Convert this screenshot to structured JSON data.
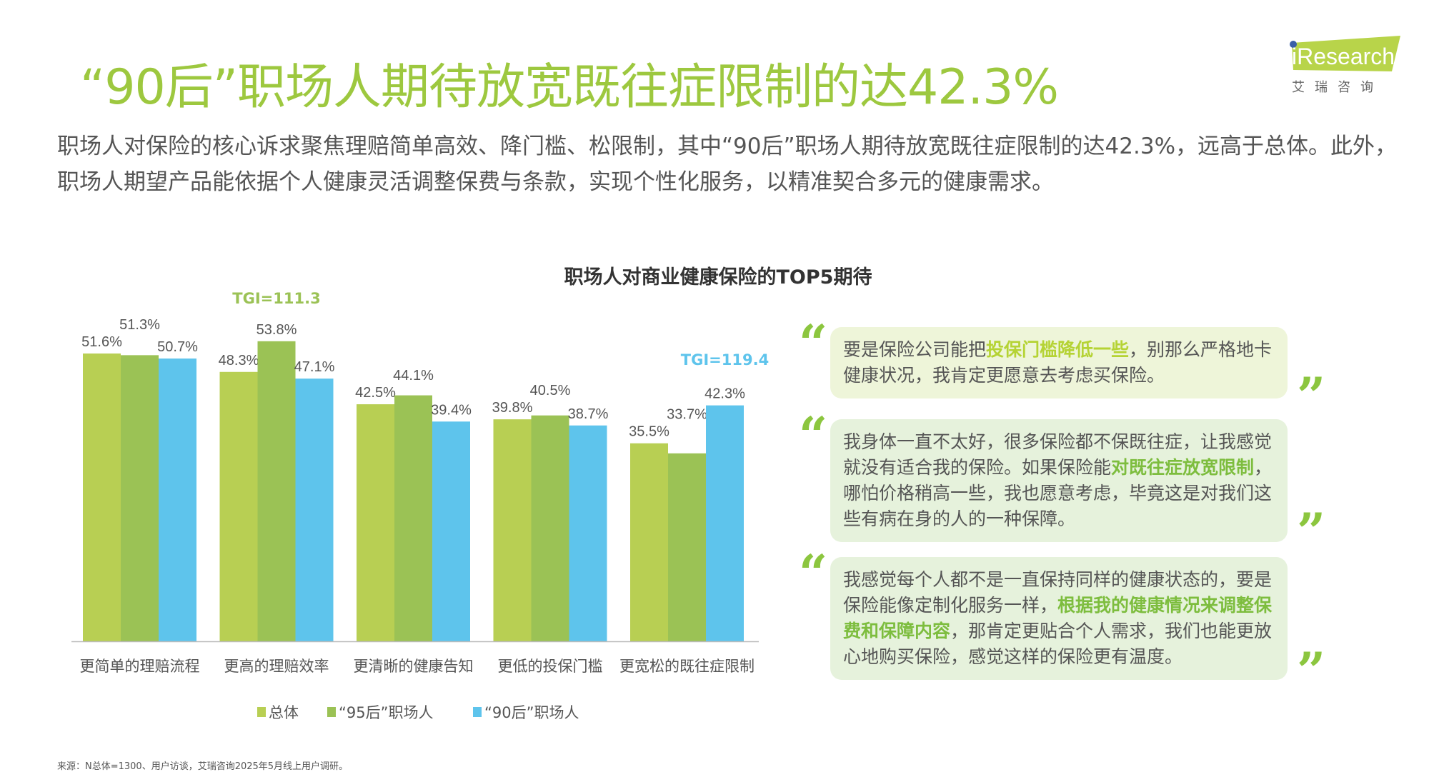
{
  "title": "“90后”职场人期待放宽既往症限制的达42.3%",
  "description": "职场人对保险的核心诉求聚焦理赔简单高效、降门槛、松限制，其中“90后”职场人期待放宽既往症限制的达42.3%，远高于总体。此外，职场人期望产品能依据个人健康灵活调整保费与条款，实现个性化服务，以精准契合多元的健康需求。",
  "logo": {
    "text": "iResearch",
    "cn": "艾 瑞 咨 询",
    "color": "#b8d44a",
    "dot_color": "#3a5fa8"
  },
  "chart_data": {
    "type": "bar",
    "title": "职场人对商业健康保险的TOP5期待",
    "categories": [
      "更简单的理赔流程",
      "更高的理赔效率",
      "更清晰的健康告知",
      "更低的投保门槛",
      "更宽松的既往症限制"
    ],
    "series": [
      {
        "name": "总体",
        "values": [
          51.6,
          48.3,
          42.5,
          39.8,
          35.5
        ],
        "labels": [
          "51.6%",
          "48.3%",
          "42.5%",
          "39.8%",
          "35.5%"
        ],
        "color": "#b8cf53"
      },
      {
        "name": "“95后”职场人",
        "values": [
          51.3,
          53.8,
          44.1,
          40.5,
          33.7
        ],
        "labels": [
          "51.3%",
          "53.8%",
          "44.1%",
          "40.5%",
          "33.7%"
        ],
        "color": "#9bc255"
      },
      {
        "name": "“90后”职场人",
        "values": [
          50.7,
          47.1,
          39.4,
          38.7,
          42.3
        ],
        "labels": [
          "50.7%",
          "47.1%",
          "39.4%",
          "38.7%",
          "42.3%"
        ],
        "color": "#5ec4ec"
      }
    ],
    "annotations": [
      {
        "text": "TGI=111.3",
        "category": 1,
        "series": 1,
        "color": "#9bc255"
      },
      {
        "text": "TGI=119.4",
        "category": 4,
        "series": 2,
        "color": "#5ec4ec"
      }
    ],
    "ylim": [
      0,
      60
    ],
    "grid": false,
    "legend": "bottom"
  },
  "quotes": [
    {
      "parts": [
        {
          "t": "要是保险公司能把"
        },
        {
          "t": "投保门槛降低一些",
          "h": 1
        },
        {
          "t": "，别那么严格地卡健康状况，我肯定更愿意去考虑买保险。"
        }
      ],
      "bg": "#eef5d9"
    },
    {
      "parts": [
        {
          "t": "我身体一直不太好，很多保险都不保既往症，让我感觉就没有适合我的保险。如果保险能"
        },
        {
          "t": "对既往症放宽限制",
          "h": 2
        },
        {
          "t": "，哪怕价格稍高一些，我也愿意考虑，毕竟这是对我们这些有病在身的人的一种保障。"
        }
      ],
      "bg": "#e6f2dc"
    },
    {
      "parts": [
        {
          "t": "我感觉每个人都不是一直保持同样的健康状态的，要是保险能像定制化服务一样，"
        },
        {
          "t": "根据我的健康情况来调整保费和保障内容",
          "h": 2
        },
        {
          "t": "，那肯定更贴合个人需求，我们也能更放心地购买保险，感觉这样的保险更有温度。"
        }
      ],
      "bg": "#e6f2dc"
    }
  ],
  "quote_marks": {
    "open": "“",
    "close": "”",
    "open_color": "#8cc63f",
    "close_color": "#8cc63f"
  },
  "source": "来源：N总体=1300、用户访谈，艾瑞咨询2025年5月线上用户调研。"
}
